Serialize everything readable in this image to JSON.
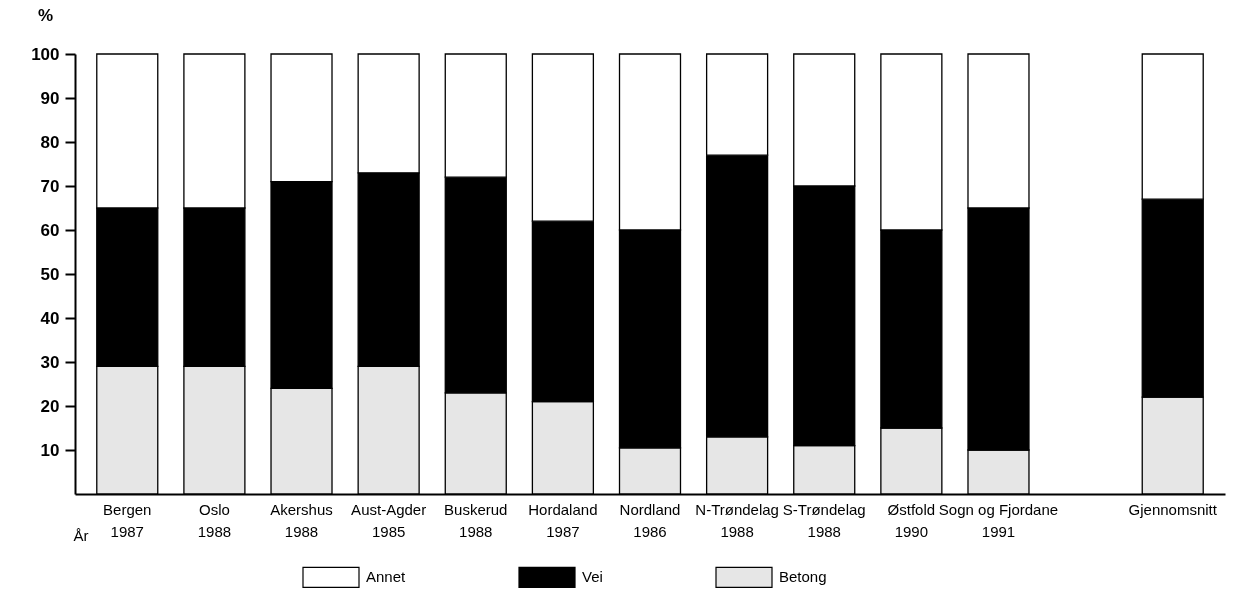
{
  "chart_data": {
    "type": "bar",
    "stacked": true,
    "ylabel": "%",
    "xlabel": "År",
    "categories": [
      "Bergen\n1987",
      "Oslo\n1988",
      "Akershus\n1988",
      "Aust-Agder\n1985",
      "Buskerud\n1988",
      "Hordaland\n1987",
      "Nordland\n1986",
      "N-Trøndelag\n1988",
      "S-Trøndelag\n1988",
      "Østfold\n1990",
      "Sogn og Fjordane\n1991",
      null,
      "Gjennomsnitt"
    ],
    "series": [
      {
        "name": "Betong",
        "color": "#e6e6e6",
        "values": [
          29,
          29,
          24,
          29,
          23,
          21,
          10.5,
          13,
          11,
          15,
          10,
          null,
          22
        ]
      },
      {
        "name": "Vei",
        "color": "#000000",
        "values": [
          36,
          36,
          47,
          44,
          49,
          41,
          49.5,
          64,
          59,
          45,
          55,
          null,
          45
        ]
      },
      {
        "name": "Annet",
        "color": "#ffffff",
        "values": [
          35,
          35,
          29,
          27,
          28,
          38,
          40,
          23,
          30,
          40,
          35,
          null,
          33
        ]
      }
    ],
    "ylim": [
      0,
      100
    ],
    "yticks": [
      10,
      20,
      30,
      40,
      50,
      60,
      70,
      80,
      90,
      100
    ],
    "grid": false,
    "legend": "bottom"
  }
}
